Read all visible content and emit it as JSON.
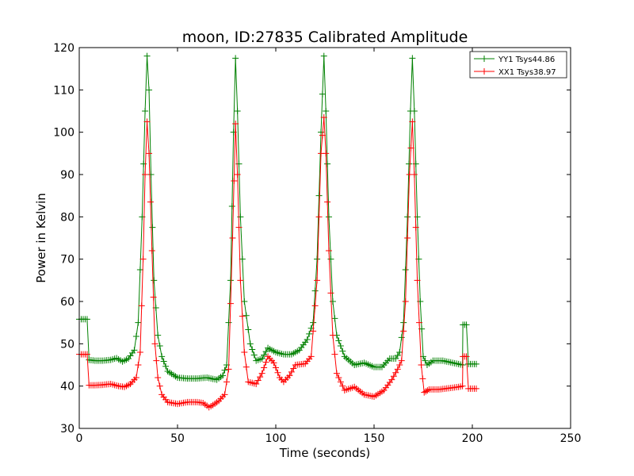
{
  "chart_data": {
    "type": "line",
    "title": "moon, ID:27835 Calibrated Amplitude",
    "xlabel": "Time (seconds)",
    "ylabel": "Power in Kelvin",
    "xlim": [
      0,
      250
    ],
    "ylim": [
      30,
      120
    ],
    "xticks": [
      "0",
      "50",
      "100",
      "150",
      "200",
      "250"
    ],
    "yticks": [
      "30",
      "40",
      "50",
      "60",
      "70",
      "80",
      "90",
      "100",
      "110",
      "120"
    ],
    "grid": false,
    "legend_position": "top-right",
    "marker": "+",
    "series": [
      {
        "name": "YY1 Tsys44.86",
        "color": "#008000",
        "points": [
          [
            0,
            55.8
          ],
          [
            2,
            55.8
          ],
          [
            4,
            55.8
          ],
          [
            5,
            46.2
          ],
          [
            8,
            46.0
          ],
          [
            12,
            46.0
          ],
          [
            16,
            46.2
          ],
          [
            19,
            46.6
          ],
          [
            22,
            45.8
          ],
          [
            25,
            46.5
          ],
          [
            28,
            48.5
          ],
          [
            30,
            55
          ],
          [
            32,
            80
          ],
          [
            33.5,
            105
          ],
          [
            34.5,
            118
          ],
          [
            35.5,
            110
          ],
          [
            36.5,
            90
          ],
          [
            38,
            65
          ],
          [
            40,
            52
          ],
          [
            42,
            47
          ],
          [
            45,
            43.5
          ],
          [
            50,
            42
          ],
          [
            55,
            41.8
          ],
          [
            60,
            41.8
          ],
          [
            65,
            42
          ],
          [
            70,
            41.5
          ],
          [
            73,
            42.5
          ],
          [
            75,
            45
          ],
          [
            77,
            65
          ],
          [
            78.5,
            100
          ],
          [
            79.5,
            117.5
          ],
          [
            80.5,
            105
          ],
          [
            82,
            80
          ],
          [
            84,
            60
          ],
          [
            87,
            50
          ],
          [
            90,
            46
          ],
          [
            93,
            46.5
          ],
          [
            96,
            49
          ],
          [
            100,
            48
          ],
          [
            104,
            47.5
          ],
          [
            108,
            47.5
          ],
          [
            112,
            48.5
          ],
          [
            116,
            51
          ],
          [
            119,
            55
          ],
          [
            121,
            70
          ],
          [
            123,
            100
          ],
          [
            124.5,
            118
          ],
          [
            125.5,
            105
          ],
          [
            127,
            80
          ],
          [
            129,
            60
          ],
          [
            131,
            52
          ],
          [
            135,
            47
          ],
          [
            140,
            45
          ],
          [
            145,
            45.5
          ],
          [
            150,
            44.5
          ],
          [
            154,
            44.5
          ],
          [
            158,
            46.5
          ],
          [
            161,
            46.5
          ],
          [
            163,
            48
          ],
          [
            165,
            55
          ],
          [
            167,
            80
          ],
          [
            168.5,
            105
          ],
          [
            169.5,
            117.5
          ],
          [
            170.5,
            105
          ],
          [
            172,
            80
          ],
          [
            173.5,
            60
          ],
          [
            175,
            47
          ],
          [
            177,
            45
          ],
          [
            180,
            46
          ],
          [
            185,
            46
          ],
          [
            190,
            45.5
          ],
          [
            195,
            45
          ],
          [
            195.2,
            54.5
          ],
          [
            197,
            54.5
          ],
          [
            198,
            45.2
          ],
          [
            200,
            45.2
          ],
          [
            202,
            45.2
          ]
        ]
      },
      {
        "name": "XX1 Tsys38.97",
        "color": "#ff0000",
        "points": [
          [
            0,
            47.5
          ],
          [
            2,
            47.5
          ],
          [
            4,
            47.5
          ],
          [
            5,
            40.2
          ],
          [
            8,
            40.2
          ],
          [
            12,
            40.3
          ],
          [
            16,
            40.5
          ],
          [
            20,
            40.0
          ],
          [
            23,
            39.8
          ],
          [
            26,
            40.5
          ],
          [
            29,
            42
          ],
          [
            31,
            48
          ],
          [
            32.5,
            70
          ],
          [
            33.5,
            90
          ],
          [
            34.5,
            102.5
          ],
          [
            35.5,
            95
          ],
          [
            37,
            72
          ],
          [
            38.5,
            50
          ],
          [
            40,
            42
          ],
          [
            42,
            38
          ],
          [
            45,
            36.2
          ],
          [
            50,
            35.8
          ],
          [
            55,
            36.2
          ],
          [
            60,
            36.2
          ],
          [
            63,
            36
          ],
          [
            66,
            35
          ],
          [
            68,
            35.5
          ],
          [
            71,
            36.5
          ],
          [
            74,
            38
          ],
          [
            76,
            44
          ],
          [
            78,
            75
          ],
          [
            79.5,
            102
          ],
          [
            80.5,
            90
          ],
          [
            82,
            65
          ],
          [
            84,
            48
          ],
          [
            86,
            41
          ],
          [
            90,
            40.5
          ],
          [
            93,
            43
          ],
          [
            96,
            47
          ],
          [
            99,
            45.5
          ],
          [
            102,
            42
          ],
          [
            104,
            41
          ],
          [
            107,
            42.5
          ],
          [
            110,
            45
          ],
          [
            115,
            45.3
          ],
          [
            118,
            47
          ],
          [
            121,
            65
          ],
          [
            123,
            95
          ],
          [
            124.5,
            103.5
          ],
          [
            125.5,
            95
          ],
          [
            127,
            72
          ],
          [
            129,
            52
          ],
          [
            131,
            43
          ],
          [
            135,
            39
          ],
          [
            140,
            39.8
          ],
          [
            145,
            38
          ],
          [
            150,
            37.5
          ],
          [
            155,
            39
          ],
          [
            159,
            41.5
          ],
          [
            162,
            44
          ],
          [
            164,
            46
          ],
          [
            166,
            60
          ],
          [
            168,
            90
          ],
          [
            169.5,
            102.5
          ],
          [
            170.5,
            90
          ],
          [
            172,
            65
          ],
          [
            174,
            45
          ],
          [
            175.5,
            38.5
          ],
          [
            178,
            39.2
          ],
          [
            183,
            39.2
          ],
          [
            188,
            39.5
          ],
          [
            193,
            39.8
          ],
          [
            195,
            40
          ],
          [
            195.2,
            47
          ],
          [
            197,
            47
          ],
          [
            198,
            39.4
          ],
          [
            200,
            39.4
          ],
          [
            202,
            39.4
          ]
        ]
      }
    ]
  }
}
